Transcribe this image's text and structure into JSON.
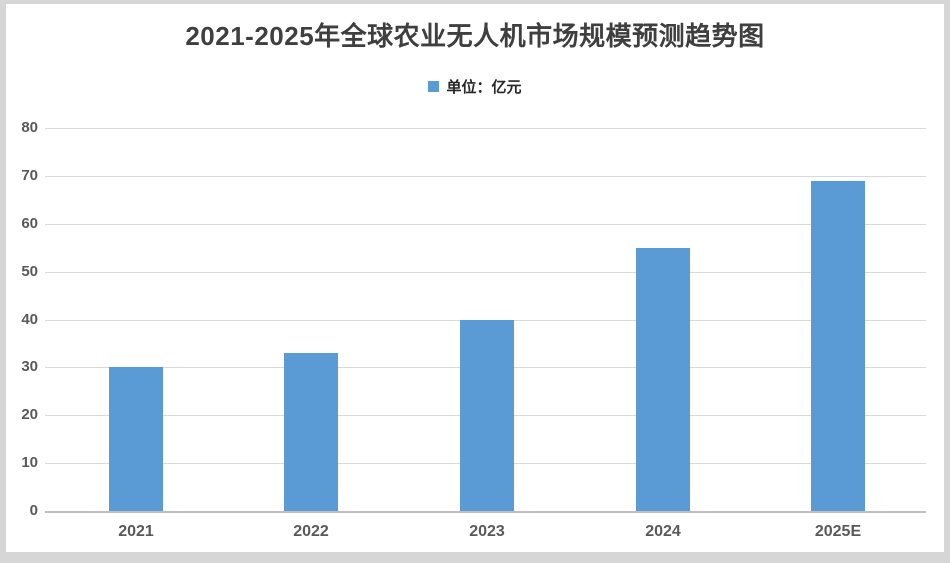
{
  "page": {
    "title": "2021-2025年全球农业无人机市场规模预测趋势图",
    "legend_label": "单位：亿元"
  },
  "colors": {
    "bar": "#5B9BD5",
    "gridline": "#D9D9D9",
    "axis_line": "#BFBFBF",
    "title_text": "#3F3F3F",
    "tick_text": "#595959",
    "frame": "#D6D6D6",
    "background": "#FFFFFF"
  },
  "chart_data": {
    "type": "bar",
    "title": "2021-2025年全球农业无人机市场规模预测趋势图",
    "legend": [
      "单位：亿元"
    ],
    "legend_position": "top-center",
    "categories": [
      "2021",
      "2022",
      "2023",
      "2024",
      "2025E"
    ],
    "values": [
      30,
      33,
      40,
      55,
      69
    ],
    "xlabel": "",
    "ylabel": "",
    "ylim": [
      0,
      80
    ],
    "ytick_step": 10,
    "grid": true
  }
}
